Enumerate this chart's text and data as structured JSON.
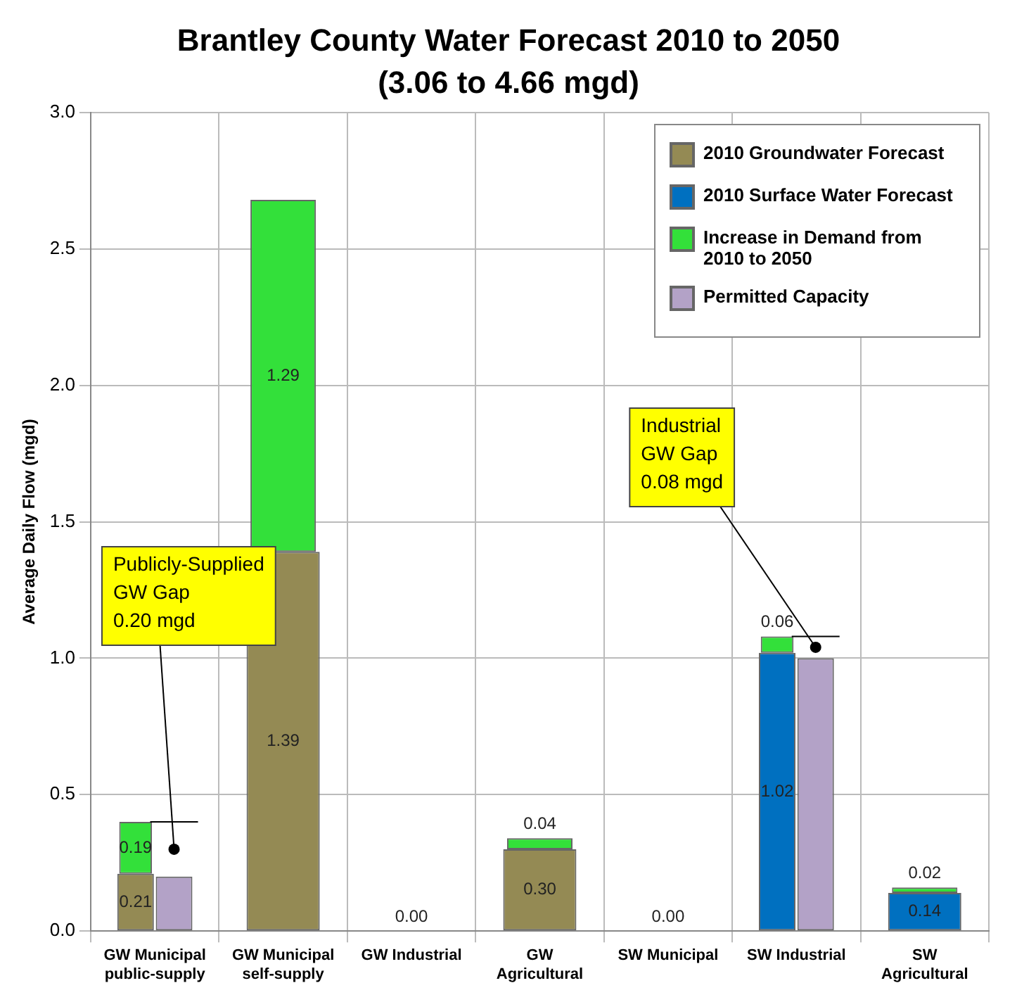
{
  "chart_data": {
    "type": "bar",
    "title": "Brantley County Water Forecast 2010 to 2050",
    "subtitle": "(3.06 to 4.66 mgd)",
    "ylabel": "Average Daily Flow (mgd)",
    "categories": [
      "GW Municipal public-supply",
      "GW Municipal self-supply",
      "GW Industrial",
      "GW Agricultural",
      "SW Municipal",
      "SW Industrial",
      "SW Agricultural"
    ],
    "series": [
      {
        "name": "2010 Groundwater Forecast",
        "color": "#948a54",
        "values": [
          0.21,
          1.39,
          0,
          0.3,
          null,
          null,
          null
        ],
        "value_labels": [
          "0.21",
          "1.39",
          "0.00",
          "0.30",
          null,
          null,
          null
        ]
      },
      {
        "name": "2010 Surface Water Forecast",
        "color": "#0070c0",
        "values": [
          null,
          null,
          null,
          null,
          0,
          1.02,
          0.14
        ],
        "value_labels": [
          null,
          null,
          null,
          null,
          "0.00",
          "1.02",
          "0.14"
        ]
      },
      {
        "name": "Increase in Demand from 2010 to 2050",
        "color": "#33e03a",
        "values": [
          0.19,
          1.29,
          null,
          0.04,
          null,
          0.06,
          0.02
        ],
        "base": [
          0.21,
          1.39,
          null,
          0.3,
          null,
          1.02,
          0.14
        ],
        "value_labels": [
          "0.19",
          "1.29",
          null,
          "0.04",
          null,
          "0.06",
          "0.02"
        ]
      },
      {
        "name": "Permitted Capacity",
        "color": "#b3a2c7",
        "values": [
          0.2,
          null,
          null,
          null,
          null,
          1.0,
          null
        ]
      }
    ],
    "ylim": [
      0,
      3
    ],
    "yticks": [
      {
        "value": 0,
        "label": "0.0"
      },
      {
        "value": 0.5,
        "label": "0.5"
      },
      {
        "value": 1,
        "label": "1.0"
      },
      {
        "value": 1.5,
        "label": "1.5"
      },
      {
        "value": 2,
        "label": "2.0"
      },
      {
        "value": 2.5,
        "label": "2.5"
      },
      {
        "value": 3,
        "label": "3.0"
      }
    ],
    "grid": true,
    "legend": "top right",
    "annotations": [
      "Publicly-Supplied\nGW Gap\n0.20 mgd",
      "Industrial\nGW Gap\n0.08 mgd"
    ]
  }
}
